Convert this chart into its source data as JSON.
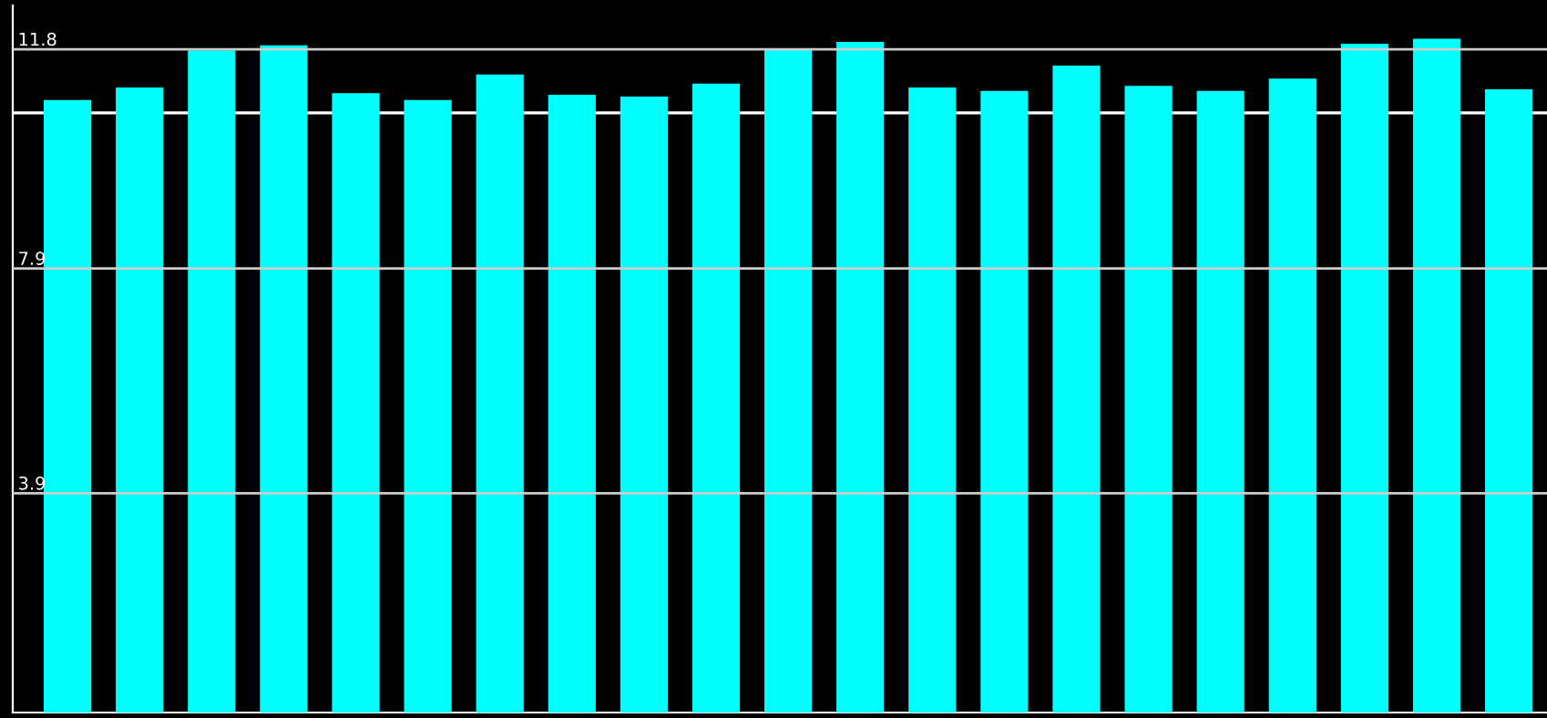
{
  "chart_data": {
    "type": "bar",
    "categories": [
      null,
      null,
      null,
      null,
      null,
      null,
      null,
      null,
      null,
      null,
      null,
      null,
      null,
      null,
      null,
      null,
      null,
      null,
      null,
      null,
      null
    ],
    "values": [
      10.9,
      11.12,
      11.78,
      11.87,
      11.02,
      10.9,
      11.35,
      10.99,
      10.96,
      11.19,
      11.8,
      11.93,
      11.12,
      11.06,
      11.51,
      11.15,
      11.06,
      11.28,
      11.9,
      11.99,
      11.09
    ],
    "color": "#00ffff",
    "ylim": [
      0,
      12.58
    ],
    "yticks": [
      3.9,
      7.9,
      11.8
    ],
    "grid": "y",
    "tick_labels": "y",
    "ref_lines": [
      {
        "axis": "y",
        "value": 10.67,
        "color": "#ffffff"
      }
    ]
  }
}
